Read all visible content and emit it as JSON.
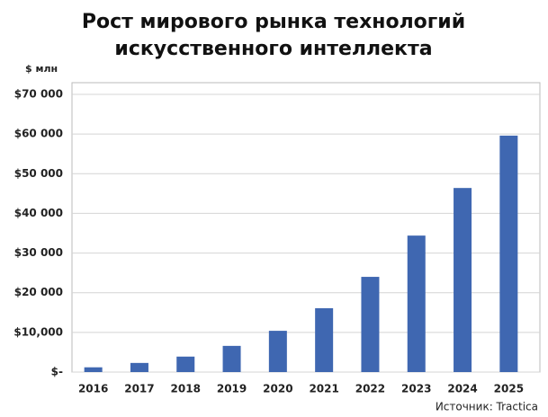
{
  "chart_data": {
    "type": "bar",
    "title": "Рост мирового рынка технологий искусственного интеллекта",
    "y_axis_label": "$ млн",
    "source": "Источник: Tractica",
    "categories": [
      "2016",
      "2017",
      "2018",
      "2019",
      "2020",
      "2021",
      "2022",
      "2023",
      "2024",
      "2025"
    ],
    "values": [
      1200,
      2300,
      3900,
      6600,
      10400,
      16100,
      24000,
      34400,
      46400,
      59600
    ],
    "color": "#3f67b1",
    "ylim": [
      0,
      70000
    ],
    "yticks": [
      {
        "value": 0,
        "label": "$-"
      },
      {
        "value": 10000,
        "label": "$10,000"
      },
      {
        "value": 20000,
        "label": "$20 000"
      },
      {
        "value": 30000,
        "label": "$30 000"
      },
      {
        "value": 40000,
        "label": "$40 000"
      },
      {
        "value": 50000,
        "label": "$50 000"
      },
      {
        "value": 60000,
        "label": "$60 000"
      },
      {
        "value": 70000,
        "label": "$70 000"
      }
    ],
    "grid": true
  }
}
